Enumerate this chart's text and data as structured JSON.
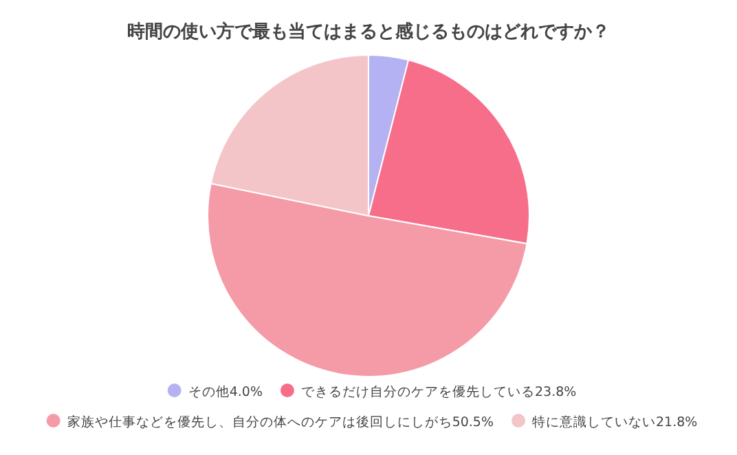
{
  "chart_data": {
    "type": "pie",
    "title": "時間の使い方で最も当てはまると感じるものはどれですか？",
    "categories": [
      "その他",
      "できるだけ自分のケアを優先している",
      "家族や仕事などを優先し、自分の体へのケアは後回しにしがち",
      "特に意識していない"
    ],
    "values": [
      4.0,
      23.8,
      50.5,
      21.8
    ],
    "value_labels": [
      "4.0%",
      "23.8%",
      "50.5%",
      "21.8%"
    ],
    "colors": [
      "#b4b2f2",
      "#f76e8a",
      "#f59ba7",
      "#f3c5c9"
    ],
    "legend": "bottom"
  }
}
